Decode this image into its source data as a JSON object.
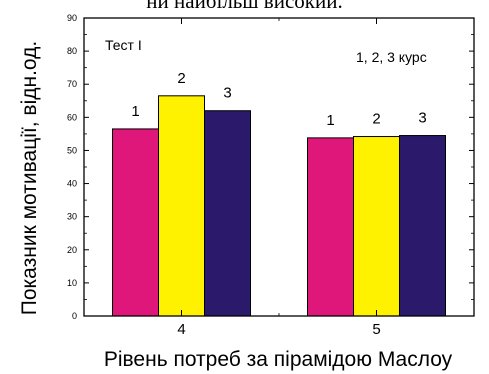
{
  "caption_fragment": "ни найбільш високий.",
  "chart_data": {
    "type": "bar",
    "title": "Тест І",
    "annotation": "1, 2, 3 курс",
    "xlabel": "Рівень потреб за пірамідою Маслоу",
    "ylabel": "Показник мотивації, відн.од.",
    "categories": [
      "4",
      "5"
    ],
    "ylim": [
      0,
      90
    ],
    "yticks": [
      0,
      10,
      20,
      30,
      40,
      50,
      60,
      70,
      80,
      90
    ],
    "grid": false,
    "series": [
      {
        "name": "1",
        "color": "#e0177a",
        "values": [
          56.5,
          53.8
        ]
      },
      {
        "name": "2",
        "color": "#fff200",
        "values": [
          66.5,
          54.2
        ]
      },
      {
        "name": "3",
        "color": "#2b1a6b",
        "values": [
          62.0,
          54.5
        ]
      }
    ]
  }
}
